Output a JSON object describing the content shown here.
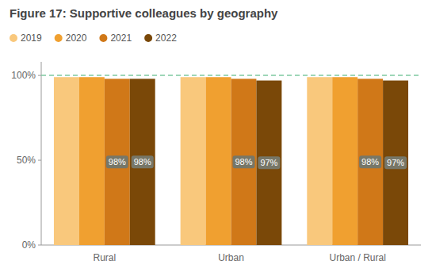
{
  "chart_data": {
    "type": "bar",
    "title": "Figure 17: Supportive colleagues by geography",
    "categories": [
      "Rural",
      "Urban",
      "Urban / Rural"
    ],
    "series": [
      {
        "name": "2019",
        "color": "#F9C87C",
        "values": [
          99,
          99,
          99
        ]
      },
      {
        "name": "2020",
        "color": "#F0A030",
        "values": [
          99,
          99,
          99
        ]
      },
      {
        "name": "2021",
        "color": "#D07818",
        "values": [
          98,
          98,
          98
        ],
        "value_labels": [
          "98%",
          "98%",
          "98%"
        ]
      },
      {
        "name": "2022",
        "color": "#7A4808",
        "values": [
          98,
          97,
          97
        ],
        "value_labels": [
          "98%",
          "97%",
          "97%"
        ]
      }
    ],
    "ylim": [
      0,
      108
    ],
    "yticks": [
      {
        "value": 0,
        "label": "0%"
      },
      {
        "value": 50,
        "label": "50%"
      },
      {
        "value": 100,
        "label": "100%"
      }
    ],
    "reference_line": {
      "value": 100,
      "color": "#7DC9A0"
    },
    "data_labels": true,
    "grid": false,
    "legend": "top"
  }
}
